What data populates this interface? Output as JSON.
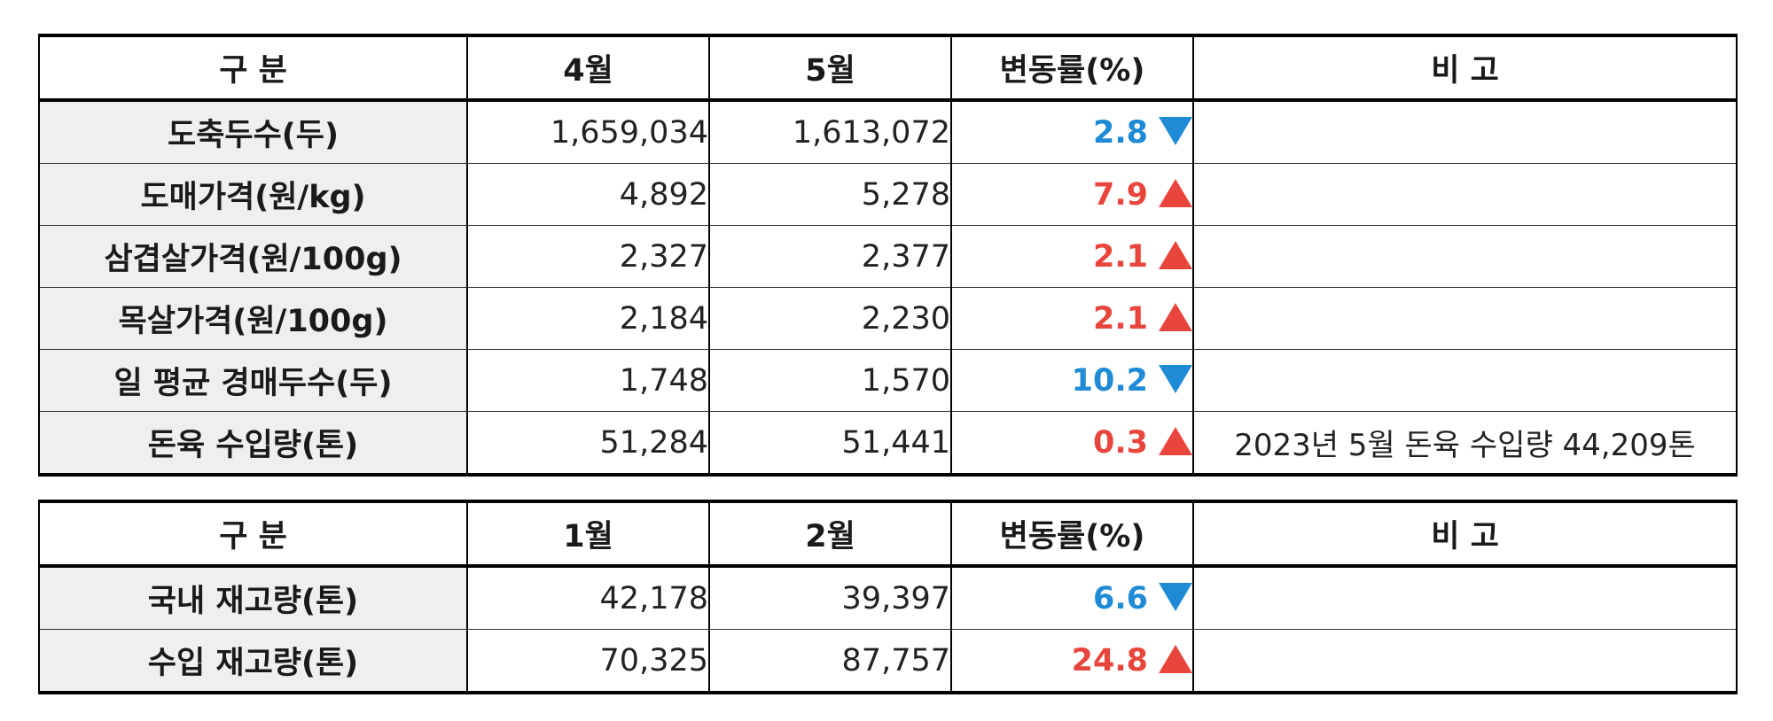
{
  "colors": {
    "up": "#e8463c",
    "down": "#1f8bd6",
    "label_bg": "#efefef"
  },
  "table1": {
    "headers": [
      "구 분",
      "4월",
      "5월",
      "변동률(%)",
      "비 고"
    ],
    "rows": [
      {
        "label": "도축두수(두)",
        "v1": "1,659,034",
        "v2": "1,613,072",
        "rate": "2.8",
        "dir": "down",
        "note": ""
      },
      {
        "label": "도매가격(원/kg)",
        "v1": "4,892",
        "v2": "5,278",
        "rate": "7.9",
        "dir": "up",
        "note": ""
      },
      {
        "label": "삼겹살가격(원/100g)",
        "v1": "2,327",
        "v2": "2,377",
        "rate": "2.1",
        "dir": "up",
        "note": ""
      },
      {
        "label": "목살가격(원/100g)",
        "v1": "2,184",
        "v2": "2,230",
        "rate": "2.1",
        "dir": "up",
        "note": ""
      },
      {
        "label": "일 평균 경매두수(두)",
        "v1": "1,748",
        "v2": "1,570",
        "rate": "10.2",
        "dir": "down",
        "note": ""
      },
      {
        "label": "돈육 수입량(톤)",
        "v1": "51,284",
        "v2": "51,441",
        "rate": "0.3",
        "dir": "up",
        "note": "2023년 5월 돈육 수입량 44,209톤"
      }
    ]
  },
  "table2": {
    "headers": [
      "구 분",
      "1월",
      "2월",
      "변동률(%)",
      "비 고"
    ],
    "rows": [
      {
        "label": "국내 재고량(톤)",
        "v1": "42,178",
        "v2": "39,397",
        "rate": "6.6",
        "dir": "down",
        "note": ""
      },
      {
        "label": "수입 재고량(톤)",
        "v1": "70,325",
        "v2": "87,757",
        "rate": "24.8",
        "dir": "up",
        "note": ""
      }
    ]
  }
}
